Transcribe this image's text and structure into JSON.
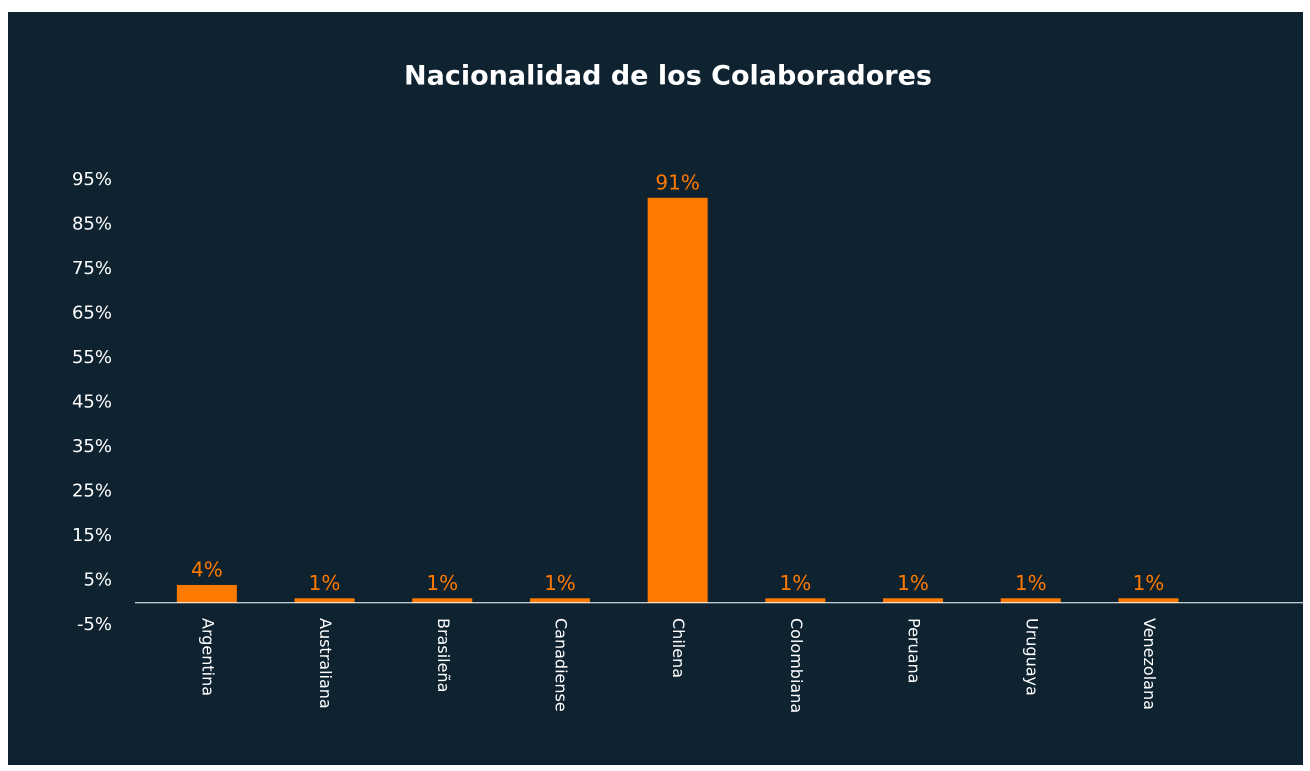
{
  "chart_data": {
    "type": "bar",
    "title": "Nacionalidad de los Colaboradores",
    "categories": [
      "Argentina",
      "Australiana",
      "Brasileña",
      "Canadiense",
      "Chilena",
      "Colombiana",
      "Peruana",
      "Uruguaya",
      "Venezolana"
    ],
    "values": [
      4,
      1,
      1,
      1,
      91,
      1,
      1,
      1,
      1
    ],
    "value_labels": [
      "4%",
      "1%",
      "1%",
      "1%",
      "91%",
      "1%",
      "1%",
      "1%",
      "1%"
    ],
    "color": "#ff7a00",
    "ylim": [
      -5,
      95
    ],
    "yticks": [
      {
        "value": -5,
        "label": "-5%"
      },
      {
        "value": 5,
        "label": "5%"
      },
      {
        "value": 15,
        "label": "15%"
      },
      {
        "value": 25,
        "label": "25%"
      },
      {
        "value": 35,
        "label": "35%"
      },
      {
        "value": 45,
        "label": "45%"
      },
      {
        "value": 55,
        "label": "55%"
      },
      {
        "value": 65,
        "label": "65%"
      },
      {
        "value": 75,
        "label": "75%"
      },
      {
        "value": 85,
        "label": "85%"
      },
      {
        "value": 95,
        "label": "95%"
      }
    ],
    "grid": false
  }
}
